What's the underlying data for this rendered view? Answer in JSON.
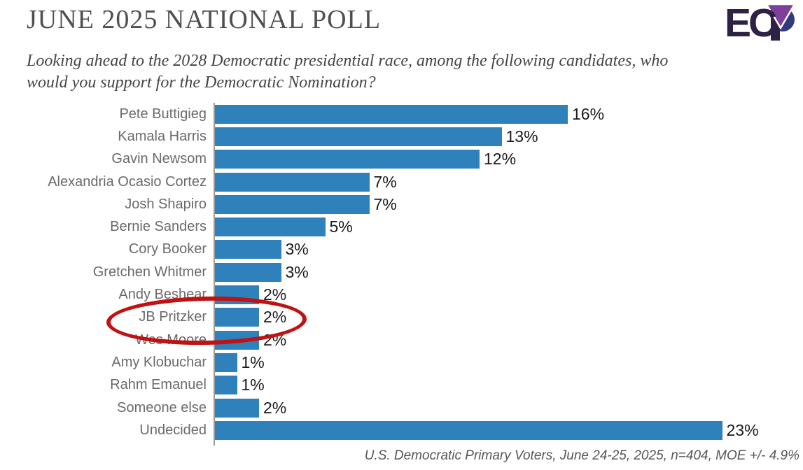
{
  "header": {
    "title": "JUNE 2025 NATIONAL POLL",
    "subtitle_line1": "Looking ahead to the 2028 Democratic presidential race, among the following candidates, who",
    "subtitle_line2": "would you support for the Democratic Nomination?",
    "logo": {
      "text": "EC",
      "name": "ECP (Emerson College Polling) logo",
      "dark_color": "#2d2145",
      "purple_color": "#7e3f9d",
      "navy_color": "#303a7c"
    }
  },
  "chart_data": {
    "type": "bar",
    "orientation": "horizontal",
    "title": "JUNE 2025 NATIONAL POLL",
    "question": "Looking ahead to the 2028 Democratic presidential race, among the following candidates, who would you support for the Democratic Nomination?",
    "categories": [
      "Pete Buttigieg",
      "Kamala Harris",
      "Gavin Newsom",
      "Alexandria Ocasio Cortez",
      "Josh Shapiro",
      "Bernie Sanders",
      "Cory Booker",
      "Gretchen Whitmer",
      "Andy Beshear",
      "JB Pritzker",
      "Wes Moore",
      "Amy Klobuchar",
      "Rahm Emanuel",
      "Someone else",
      "Undecided"
    ],
    "values": [
      16,
      13,
      12,
      7,
      7,
      5,
      3,
      3,
      2,
      2,
      2,
      1,
      1,
      2,
      23
    ],
    "value_labels": [
      "16%",
      "13%",
      "12%",
      "7%",
      "7%",
      "5%",
      "3%",
      "3%",
      "2%",
      "2%",
      "2%",
      "1%",
      "1%",
      "2%",
      "23%"
    ],
    "xlim": [
      0,
      23
    ],
    "grid": false,
    "legend": false,
    "bar_color": "#2e81bb",
    "axis_color": "#9b9b9b",
    "annotation": {
      "type": "hand-drawn ellipse",
      "target_category": "JB Pritzker",
      "color": "#c01212"
    },
    "footnote": "U.S. Democratic Primary Voters, June 24-25, 2025, n=404, MOE +/- 4.9%"
  },
  "footer": {
    "source_note": "U.S. Democratic Primary Voters, June 24-25, 2025, n=404, MOE +/- 4.9%"
  }
}
